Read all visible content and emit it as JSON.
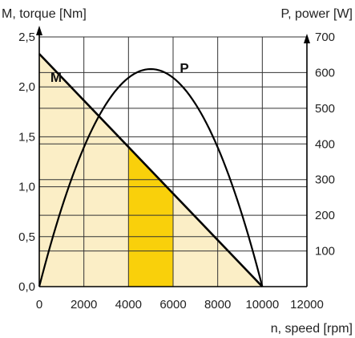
{
  "chart_data": {
    "type": "line",
    "left_axis_title": "M, torque [Nm]",
    "right_axis_title": "P, power [W]",
    "x_axis_title": "n, speed [rpm]",
    "x_ticks": [
      "0",
      "2000",
      "4000",
      "6000",
      "8000",
      "10000",
      "12000"
    ],
    "left_ticks": [
      "0,0",
      "0,5",
      "1,0",
      "1,5",
      "2,0",
      "2,5"
    ],
    "right_ticks": [
      "100",
      "200",
      "300",
      "400",
      "500",
      "600",
      "700"
    ],
    "xlim": [
      0,
      12000
    ],
    "ylim_left": [
      0,
      2.5
    ],
    "ylim_right": [
      0,
      700
    ],
    "grid": true,
    "series": [
      {
        "name": "M",
        "axis": "left",
        "x": [
          0,
          10000
        ],
        "y": [
          2.33,
          0
        ]
      },
      {
        "name": "P",
        "axis": "right",
        "x": [
          0,
          1000,
          2000,
          3000,
          4000,
          5000,
          6000,
          7000,
          8000,
          9000,
          10000
        ],
        "y": [
          0,
          220,
          390,
          520,
          590,
          610,
          590,
          520,
          390,
          220,
          0
        ]
      }
    ],
    "shaded_regions": [
      {
        "x_from": 0,
        "x_to": 10000,
        "under": "M",
        "color": "#fbeec6"
      },
      {
        "x_from": 4000,
        "x_to": 6000,
        "under": "M",
        "color": "#f9d00b"
      }
    ],
    "colors": {
      "curve": "#000000",
      "grid": "#333333",
      "light_fill": "#fbeec6",
      "highlight_fill": "#f9d00b"
    }
  }
}
